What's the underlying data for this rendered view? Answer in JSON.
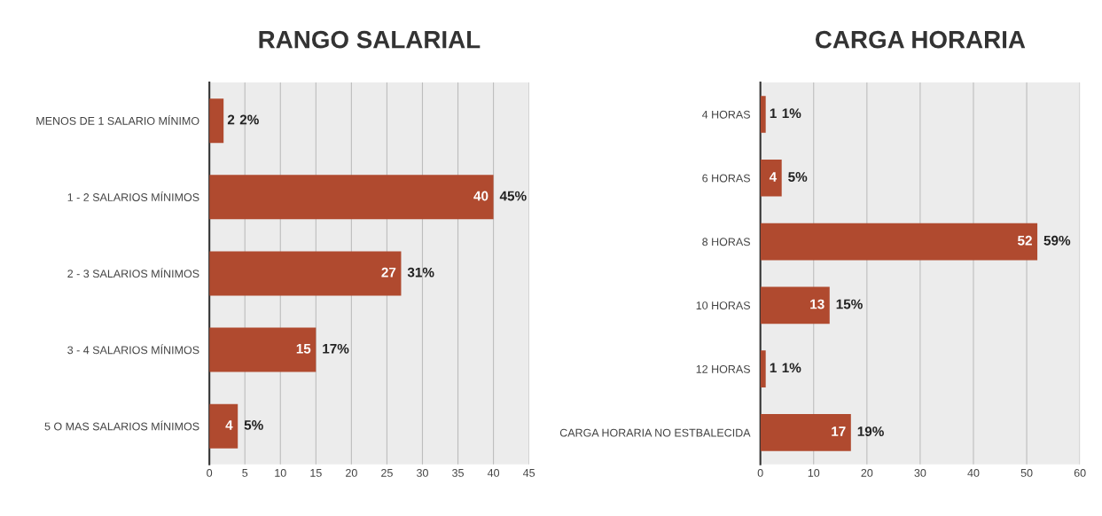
{
  "chart_data": [
    {
      "type": "bar",
      "orientation": "horizontal",
      "title": "RANGO SALARIAL",
      "categories": [
        "MENOS DE 1 SALARIO MÍNIMO",
        "1 - 2 SALARIOS MÍNIMOS",
        "2 - 3 SALARIOS MÍNIMOS",
        "3 - 4 SALARIOS MÍNIMOS",
        "5 O MAS SALARIOS MÍNIMOS"
      ],
      "values": [
        2,
        40,
        27,
        15,
        4
      ],
      "color": "#b04a2f",
      "data_labels": true,
      "annotations": [
        {
          "text": "2%",
          "x": 2,
          "y": "MENOS DE 1 SALARIO MÍNIMO"
        },
        {
          "text": "45%",
          "x": 40,
          "y": "1 - 2 SALARIOS MÍNIMOS"
        },
        {
          "text": "31%",
          "x": 27,
          "y": "2 - 3 SALARIOS MÍNIMOS"
        },
        {
          "text": "17%",
          "x": 15,
          "y": "3 - 4 SALARIOS MÍNIMOS"
        },
        {
          "text": "5%",
          "x": 4,
          "y": "5 O MAS SALARIOS MÍNIMOS"
        }
      ],
      "xlim": [
        0,
        45
      ],
      "xticks": [
        0,
        5,
        10,
        15,
        20,
        25,
        30,
        35,
        40,
        45
      ],
      "grid": "x",
      "legend": false
    },
    {
      "type": "bar",
      "orientation": "horizontal",
      "title": "CARGA HORARIA",
      "categories": [
        "4 HORAS",
        "6 HORAS",
        "8 HORAS",
        "10 HORAS",
        "12 HORAS",
        "CARGA HORARIA NO ESTBALECIDA"
      ],
      "values": [
        1,
        4,
        52,
        13,
        1,
        17
      ],
      "color": "#b04a2f",
      "data_labels": true,
      "annotations": [
        {
          "text": "1%",
          "x": 1,
          "y": "4 HORAS"
        },
        {
          "text": "5%",
          "x": 4,
          "y": "6 HORAS"
        },
        {
          "text": "59%",
          "x": 52,
          "y": "8 HORAS"
        },
        {
          "text": "15%",
          "x": 13,
          "y": "10 HORAS"
        },
        {
          "text": "1%",
          "x": 1,
          "y": "12 HORAS"
        },
        {
          "text": "19%",
          "x": 17,
          "y": "CARGA HORARIA NO ESTBALECIDA"
        }
      ],
      "xlim": [
        0,
        60
      ],
      "xticks": [
        0,
        10,
        20,
        30,
        40,
        50,
        60
      ],
      "grid": "x",
      "legend": false
    }
  ]
}
